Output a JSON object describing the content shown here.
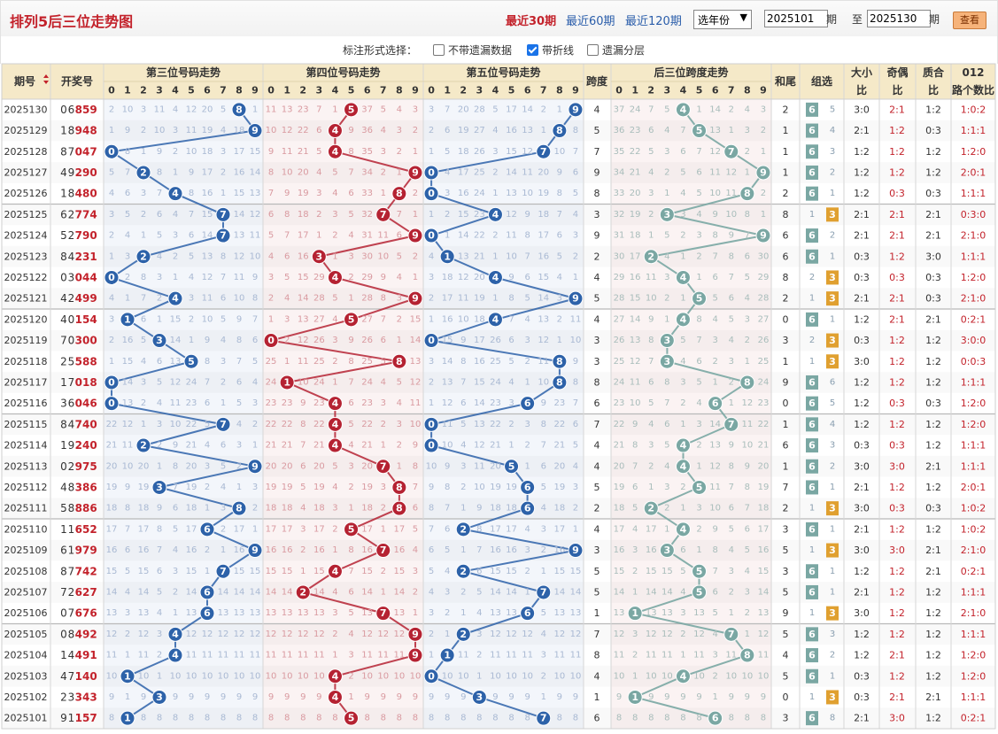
{
  "header": {
    "title": "排列5后三位走势图",
    "periods": [
      "最近30期",
      "最近60期",
      "最近120期"
    ],
    "active_period": 0,
    "year_select": "选年份",
    "from_value": "2025101",
    "to_value": "2025130",
    "period_unit": "期",
    "to_label": "至",
    "query_label": "查看"
  },
  "options": {
    "label": "标注形式选择：",
    "items": [
      {
        "label": "不带遗漏数据",
        "checked": false
      },
      {
        "label": "带折线",
        "checked": true
      },
      {
        "label": "遗漏分层",
        "checked": false
      }
    ]
  },
  "table": {
    "col_period": "期号",
    "col_draw": "开奖号",
    "group_titles": [
      "第三位号码走势",
      "第四位号码走势",
      "第五位号码走势",
      "后三位跨度走势"
    ],
    "col_span": "跨度",
    "col_sum_tail": "和尾",
    "col_group": "组选",
    "col_big_small": "大小比",
    "col_odd_even": "奇偶比",
    "col_prime": "质合比",
    "col_012": "012路个数比",
    "digits": [
      "0",
      "1",
      "2",
      "3",
      "4",
      "5",
      "6",
      "7",
      "8",
      "9"
    ]
  },
  "chart_data": {
    "type": "table",
    "rows": [
      {
        "period": "2025130",
        "draw": "06859",
        "span": 4,
        "sum_tail": 2,
        "group": "6",
        "group_other": "5",
        "bs": "3:0",
        "oe": "2:1",
        "pc": "1:2",
        "r012": "1:0:2"
      },
      {
        "period": "2025129",
        "draw": "18948",
        "span": 5,
        "sum_tail": 1,
        "group": "6",
        "group_other": "4",
        "bs": "2:1",
        "oe": "1:2",
        "pc": "0:3",
        "r012": "1:1:1"
      },
      {
        "period": "2025128",
        "draw": "87047",
        "span": 7,
        "sum_tail": 1,
        "group": "6",
        "group_other": "3",
        "bs": "1:2",
        "oe": "1:2",
        "pc": "1:2",
        "r012": "1:2:0"
      },
      {
        "period": "2025127",
        "draw": "49290",
        "span": 9,
        "sum_tail": 1,
        "group": "6",
        "group_other": "2",
        "bs": "1:2",
        "oe": "1:2",
        "pc": "1:2",
        "r012": "2:0:1"
      },
      {
        "period": "2025126",
        "draw": "18480",
        "span": 8,
        "sum_tail": 2,
        "group": "6",
        "group_other": "1",
        "bs": "1:2",
        "oe": "0:3",
        "pc": "0:3",
        "r012": "1:1:1"
      },
      {
        "period": "2025125",
        "draw": "62774",
        "span": 3,
        "sum_tail": 8,
        "group": "3",
        "group_other": "1",
        "bs": "2:1",
        "oe": "2:1",
        "pc": "2:1",
        "r012": "0:3:0"
      },
      {
        "period": "2025124",
        "draw": "52790",
        "span": 9,
        "sum_tail": 6,
        "group": "6",
        "group_other": "2",
        "bs": "2:1",
        "oe": "2:1",
        "pc": "2:1",
        "r012": "2:1:0"
      },
      {
        "period": "2025123",
        "draw": "84231",
        "span": 2,
        "sum_tail": 6,
        "group": "6",
        "group_other": "1",
        "bs": "0:3",
        "oe": "1:2",
        "pc": "3:0",
        "r012": "1:1:1"
      },
      {
        "period": "2025122",
        "draw": "03044",
        "span": 4,
        "sum_tail": 8,
        "group": "3",
        "group_other": "2",
        "bs": "0:3",
        "oe": "0:3",
        "pc": "0:3",
        "r012": "1:2:0"
      },
      {
        "period": "2025121",
        "draw": "42499",
        "span": 5,
        "sum_tail": 2,
        "group": "3",
        "group_other": "1",
        "bs": "2:1",
        "oe": "2:1",
        "pc": "0:3",
        "r012": "2:1:0"
      },
      {
        "period": "2025120",
        "draw": "40154",
        "span": 4,
        "sum_tail": 0,
        "group": "6",
        "group_other": "1",
        "bs": "1:2",
        "oe": "2:1",
        "pc": "2:1",
        "r012": "0:2:1"
      },
      {
        "period": "2025119",
        "draw": "70300",
        "span": 3,
        "sum_tail": 3,
        "group": "3",
        "group_other": "2",
        "bs": "0:3",
        "oe": "1:2",
        "pc": "1:2",
        "r012": "3:0:0"
      },
      {
        "period": "2025118",
        "draw": "25588",
        "span": 3,
        "sum_tail": 1,
        "group": "3",
        "group_other": "1",
        "bs": "3:0",
        "oe": "1:2",
        "pc": "1:2",
        "r012": "0:0:3"
      },
      {
        "period": "2025117",
        "draw": "17018",
        "span": 8,
        "sum_tail": 9,
        "group": "6",
        "group_other": "6",
        "bs": "1:2",
        "oe": "1:2",
        "pc": "1:2",
        "r012": "1:1:1"
      },
      {
        "period": "2025116",
        "draw": "36046",
        "span": 6,
        "sum_tail": 0,
        "group": "6",
        "group_other": "5",
        "bs": "1:2",
        "oe": "0:3",
        "pc": "0:3",
        "r012": "1:2:0"
      },
      {
        "period": "2025115",
        "draw": "84740",
        "span": 7,
        "sum_tail": 1,
        "group": "6",
        "group_other": "4",
        "bs": "1:2",
        "oe": "1:2",
        "pc": "1:2",
        "r012": "1:2:0"
      },
      {
        "period": "2025114",
        "draw": "19240",
        "span": 4,
        "sum_tail": 6,
        "group": "6",
        "group_other": "3",
        "bs": "0:3",
        "oe": "0:3",
        "pc": "1:2",
        "r012": "1:1:1"
      },
      {
        "period": "2025113",
        "draw": "02975",
        "span": 4,
        "sum_tail": 1,
        "group": "6",
        "group_other": "2",
        "bs": "3:0",
        "oe": "3:0",
        "pc": "2:1",
        "r012": "1:1:1"
      },
      {
        "period": "2025112",
        "draw": "48386",
        "span": 5,
        "sum_tail": 7,
        "group": "6",
        "group_other": "1",
        "bs": "2:1",
        "oe": "1:2",
        "pc": "1:2",
        "r012": "2:0:1"
      },
      {
        "period": "2025111",
        "draw": "58886",
        "span": 2,
        "sum_tail": 2,
        "group": "3",
        "group_other": "1",
        "bs": "3:0",
        "oe": "0:3",
        "pc": "0:3",
        "r012": "1:0:2"
      },
      {
        "period": "2025110",
        "draw": "11652",
        "span": 4,
        "sum_tail": 3,
        "group": "6",
        "group_other": "1",
        "bs": "2:1",
        "oe": "1:2",
        "pc": "1:2",
        "r012": "1:0:2"
      },
      {
        "period": "2025109",
        "draw": "61979",
        "span": 3,
        "sum_tail": 5,
        "group": "3",
        "group_other": "1",
        "bs": "3:0",
        "oe": "3:0",
        "pc": "2:1",
        "r012": "2:1:0"
      },
      {
        "period": "2025108",
        "draw": "87742",
        "span": 5,
        "sum_tail": 3,
        "group": "6",
        "group_other": "1",
        "bs": "1:2",
        "oe": "1:2",
        "pc": "2:1",
        "r012": "0:2:1"
      },
      {
        "period": "2025107",
        "draw": "72627",
        "span": 5,
        "sum_tail": 5,
        "group": "6",
        "group_other": "1",
        "bs": "2:1",
        "oe": "1:2",
        "pc": "1:2",
        "r012": "1:1:1"
      },
      {
        "period": "2025106",
        "draw": "07676",
        "span": 1,
        "sum_tail": 9,
        "group": "3",
        "group_other": "1",
        "bs": "3:0",
        "oe": "1:2",
        "pc": "1:2",
        "r012": "2:1:0"
      },
      {
        "period": "2025105",
        "draw": "08492",
        "span": 7,
        "sum_tail": 5,
        "group": "6",
        "group_other": "3",
        "bs": "1:2",
        "oe": "1:2",
        "pc": "1:2",
        "r012": "1:1:1"
      },
      {
        "period": "2025104",
        "draw": "14491",
        "span": 8,
        "sum_tail": 4,
        "group": "6",
        "group_other": "2",
        "bs": "1:2",
        "oe": "2:1",
        "pc": "1:2",
        "r012": "1:2:0"
      },
      {
        "period": "2025103",
        "draw": "47140",
        "span": 4,
        "sum_tail": 5,
        "group": "6",
        "group_other": "1",
        "bs": "0:3",
        "oe": "1:2",
        "pc": "1:2",
        "r012": "1:2:0"
      },
      {
        "period": "2025102",
        "draw": "23343",
        "span": 1,
        "sum_tail": 0,
        "group": "3",
        "group_other": "1",
        "bs": "0:3",
        "oe": "2:1",
        "pc": "2:1",
        "r012": "1:1:1"
      },
      {
        "period": "2025101",
        "draw": "91157",
        "span": 6,
        "sum_tail": 3,
        "group": "6",
        "group_other": "8",
        "bs": "2:1",
        "oe": "3:0",
        "pc": "1:2",
        "r012": "0:2:1"
      }
    ]
  },
  "colors": {
    "title": "#c3222b",
    "pos3_ball": "#2d62a9",
    "pos4_ball": "#b52232",
    "pos5_ball": "#2d62a9",
    "span_ball": "#7aa7a3",
    "group6": "#7aa7a3",
    "group3": "#e0a030",
    "header_bg": "#f5e9c8"
  }
}
